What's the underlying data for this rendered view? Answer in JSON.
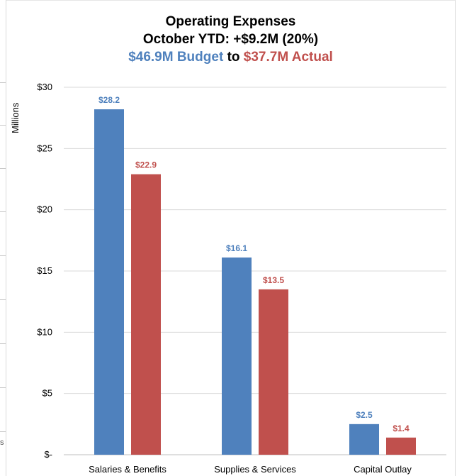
{
  "title": {
    "line1": "Operating Expenses",
    "line2": "October YTD: +$9.2M (20%)",
    "budget_text": "$46.9M Budget",
    "joiner_text": "to",
    "actual_text": "$37.7M Actual"
  },
  "y_axis_title": "Millions",
  "stray_mark": "s",
  "colors": {
    "budget": "#4f81bd",
    "actual": "#c0504d",
    "grid": "#d9d9d9"
  },
  "chart_data": {
    "type": "bar",
    "title": "Operating Expenses",
    "subtitle": "October YTD: +$9.2M (20%)",
    "ylabel": "Millions",
    "xlabel": "",
    "categories": [
      "Salaries & Benefits",
      "Supplies & Services",
      "Capital Outlay"
    ],
    "series": [
      {
        "values": [
          28.2,
          16.1,
          2.5
        ],
        "labels": [
          "$28.2",
          "$16.1",
          "$2.5"
        ]
      },
      {
        "values": [
          22.9,
          13.5,
          1.4
        ],
        "labels": [
          "$22.9",
          "$13.5",
          "$1.4"
        ]
      }
    ],
    "ylim": [
      0,
      30
    ],
    "yticks": [
      0,
      5,
      10,
      15,
      20,
      25,
      30
    ],
    "ytick_labels": [
      "$-",
      "$5",
      "$10",
      "$15",
      "$20",
      "$25",
      "$30"
    ],
    "grid": true
  }
}
